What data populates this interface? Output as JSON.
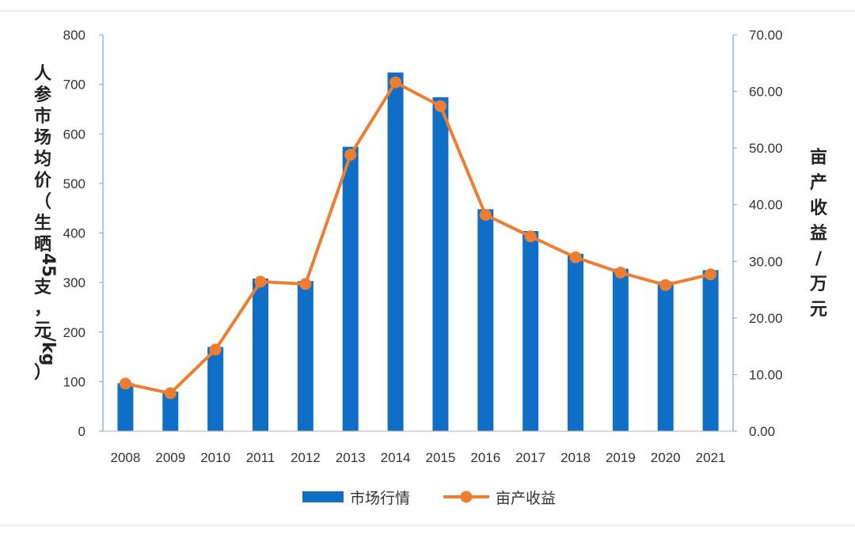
{
  "chart_data": {
    "type": "bar",
    "categories": [
      "2008",
      "2009",
      "2010",
      "2011",
      "2012",
      "2013",
      "2014",
      "2015",
      "2016",
      "2017",
      "2018",
      "2019",
      "2020",
      "2021"
    ],
    "series": [
      {
        "name": "市场行情",
        "type": "bar",
        "axis": "left",
        "values": [
          97,
          80,
          170,
          308,
          303,
          574,
          724,
          674,
          448,
          404,
          358,
          328,
          302,
          325
        ]
      },
      {
        "name": "亩产收益",
        "type": "line",
        "axis": "right",
        "values": [
          8.4,
          6.7,
          14.4,
          26.4,
          26.0,
          48.8,
          61.6,
          57.4,
          38.2,
          34.4,
          30.7,
          28.0,
          25.8,
          27.7
        ]
      }
    ],
    "ylabel": "人参市场均价（生晒45支，元/kg）",
    "ylabel_chars": [
      "人",
      "参",
      "市",
      "场",
      "均",
      "价",
      "（",
      "生",
      "晒",
      "45",
      "支",
      "，",
      "元",
      "/kg",
      "）"
    ],
    "ylabel_right": "亩产收益/万元",
    "ylabel_right_chars": [
      "亩",
      "产",
      "收",
      "益",
      "/",
      "万",
      "元"
    ],
    "ylim": [
      0,
      800
    ],
    "ylim_right": [
      0,
      70
    ],
    "yticks": [
      "0",
      "100",
      "200",
      "300",
      "400",
      "500",
      "600",
      "700",
      "800"
    ],
    "yticks_right": [
      "0.00",
      "10.00",
      "20.00",
      "30.00",
      "40.00",
      "50.00",
      "60.00",
      "70.00"
    ],
    "grid": false,
    "legend_position": "bottom",
    "colors": {
      "bar": "#0f6fc6",
      "line": "#ed7d31",
      "axis": "#7aa6d8"
    }
  }
}
